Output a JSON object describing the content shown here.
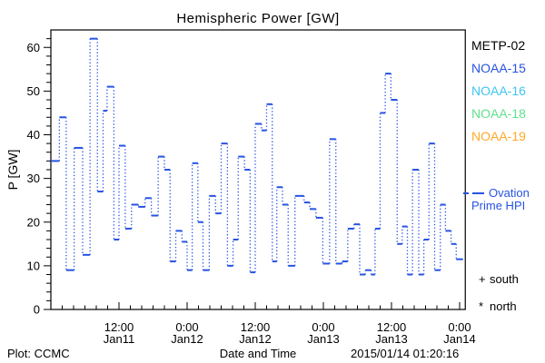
{
  "title": "Hemispheric Power [GW]",
  "y_axis": {
    "label": "P [GW]",
    "ticks": [
      0,
      10,
      20,
      30,
      40,
      50,
      60
    ],
    "minor_step": 2,
    "max": 64
  },
  "x_axis": {
    "label": "Date and Time",
    "minor_step_hours": 2,
    "t_max": 73,
    "major_ticks": [
      {
        "t": 12,
        "time": "12:00",
        "date": "Jan11"
      },
      {
        "t": 24,
        "time": "0:00",
        "date": "Jan12"
      },
      {
        "t": 36,
        "time": "12:00",
        "date": "Jan12"
      },
      {
        "t": 48,
        "time": "0:00",
        "date": "Jan13"
      },
      {
        "t": 60,
        "time": "12:00",
        "date": "Jan13"
      },
      {
        "t": 72,
        "time": "0:00",
        "date": "Jan14"
      }
    ]
  },
  "legend": {
    "satellites": [
      {
        "label": "METP-02",
        "color": "#000000"
      },
      {
        "label": "NOAA-15",
        "color": "#2753e3"
      },
      {
        "label": "NOAA-16",
        "color": "#3ec6f0"
      },
      {
        "label": "NOAA-18",
        "color": "#5fe08d"
      },
      {
        "label": "NOAA-19",
        "color": "#ffa928"
      }
    ],
    "ovation": {
      "line1": "Ovation",
      "line2": "Prime HPI",
      "color": "#2753e3"
    }
  },
  "markers": [
    {
      "symbol": "+",
      "label": "south"
    },
    {
      "symbol": "*",
      "label": "north"
    }
  ],
  "footer": {
    "left": "Plot: CCMC",
    "center": "Date and Time",
    "right": "2015/01/14 01:20:16"
  },
  "colors": {
    "line": "#2753e3",
    "axis": "#000000"
  },
  "chart_data": {
    "type": "line",
    "style": "steps-horizontal-solid-vertical-dotted",
    "title": "Hemispheric Power [GW]",
    "xlabel": "Date and Time",
    "ylabel": "P [GW]",
    "x_unit": "hours since 2015-01-11 00:00",
    "ylim": [
      0,
      64
    ],
    "xlim": [
      0,
      73
    ],
    "end_t": 72.6,
    "points": [
      [
        0,
        34
      ],
      [
        1.5,
        44
      ],
      [
        2.7,
        9
      ],
      [
        4.1,
        37
      ],
      [
        5.6,
        12.5
      ],
      [
        6.9,
        62
      ],
      [
        8.2,
        27
      ],
      [
        9.2,
        45.5
      ],
      [
        9.9,
        51
      ],
      [
        11.1,
        16
      ],
      [
        12,
        37.5
      ],
      [
        13.1,
        18.5
      ],
      [
        14.2,
        24
      ],
      [
        15.4,
        23.5
      ],
      [
        16.6,
        25.5
      ],
      [
        17.7,
        21.5
      ],
      [
        18.9,
        35
      ],
      [
        20,
        32
      ],
      [
        21,
        11
      ],
      [
        22,
        18
      ],
      [
        23.1,
        15.5
      ],
      [
        24,
        9
      ],
      [
        24.9,
        33.5
      ],
      [
        25.9,
        20
      ],
      [
        26.8,
        9
      ],
      [
        27.9,
        26
      ],
      [
        29,
        22
      ],
      [
        30,
        38
      ],
      [
        31.1,
        10
      ],
      [
        32.1,
        16
      ],
      [
        33,
        35
      ],
      [
        34.1,
        32
      ],
      [
        35.1,
        8.5
      ],
      [
        36,
        42.5
      ],
      [
        37.1,
        41
      ],
      [
        38,
        47
      ],
      [
        39,
        11
      ],
      [
        39.8,
        28
      ],
      [
        40.8,
        24
      ],
      [
        41.8,
        10
      ],
      [
        43,
        26
      ],
      [
        44.6,
        24.5
      ],
      [
        45.6,
        23
      ],
      [
        46.7,
        21
      ],
      [
        47.9,
        10.5
      ],
      [
        49.1,
        39
      ],
      [
        50.2,
        10.5
      ],
      [
        51.3,
        11
      ],
      [
        52.3,
        18.5
      ],
      [
        53.4,
        19.5
      ],
      [
        54.4,
        8
      ],
      [
        55.4,
        9
      ],
      [
        56.4,
        8
      ],
      [
        57.1,
        18.5
      ],
      [
        58,
        45
      ],
      [
        58.9,
        54
      ],
      [
        59.9,
        48
      ],
      [
        61,
        15
      ],
      [
        61.9,
        19
      ],
      [
        62.8,
        8
      ],
      [
        63.7,
        32
      ],
      [
        64.8,
        8
      ],
      [
        65.7,
        16
      ],
      [
        66.6,
        38
      ],
      [
        67.6,
        9
      ],
      [
        68.6,
        24
      ],
      [
        69.5,
        18
      ],
      [
        70.5,
        15
      ],
      [
        71.4,
        11.5
      ]
    ]
  }
}
